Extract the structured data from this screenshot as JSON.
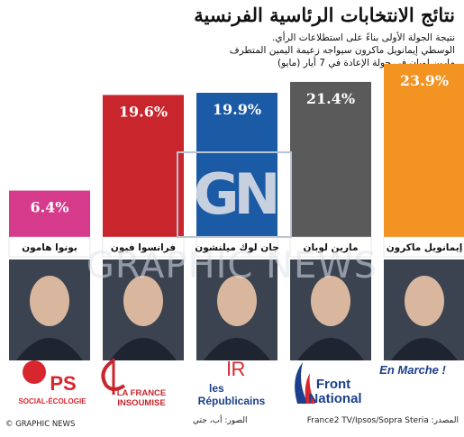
{
  "title": "نتائج الانتخابات الرئاسية الفرنسية",
  "subtitle": [
    "نتيجة الجولة الأولى بناءً على استطلاعات الرأي.",
    "الوسطي إيمانويل ماكرون سيواجه زعيمة اليمين المتطرف",
    "مارين لوبان في جولة الإعادة في 7 أيار (مايو)"
  ],
  "watermark": {
    "logo": "GN",
    "text": "GRAPHIC NEWS"
  },
  "chart_data": {
    "type": "bar",
    "categories": [
      "بونوا هامون",
      "فرانسوا فيون",
      "جان لوك ميلنشون",
      "مارين لوبان",
      "إيمانويل ماكرون"
    ],
    "values": [
      6.4,
      19.6,
      19.9,
      21.4,
      23.9
    ],
    "data_labels": [
      "6.4%",
      "19.6%",
      "19.9%",
      "21.4%",
      "23.9%"
    ],
    "colors": [
      "#d63a8a",
      "#c8252d",
      "#1b5aa5",
      "#5a5a5a",
      "#f39321"
    ],
    "label_colors": [
      "#ffffff",
      "#ffffff",
      "#ffffff",
      "#ffffff",
      "#ffffff"
    ],
    "ylim": [
      0,
      24.5
    ],
    "grid": false
  },
  "parties": [
    {
      "name": "PS",
      "sub": "SOCIAL-ÉCOLOGIE",
      "color": "#d8262f"
    },
    {
      "name": "LA FRANCE",
      "sub": "INSOUMISE",
      "color": "#c8252d"
    },
    {
      "name": "les",
      "sub": "Républicains",
      "color": "#1b3f8a"
    },
    {
      "name": "Front",
      "sub": "National",
      "color": "#1b3f8a"
    },
    {
      "name": "En Marche !",
      "sub": "",
      "color": "#1b3f8a"
    }
  ],
  "party_icons": [
    "rose-icon",
    "phi-icon",
    "lr-icon",
    "flame-icon",
    "none"
  ],
  "footer": {
    "copyright": "© GRAPHIC NEWS",
    "photos": "الصور: أب، جتي",
    "source_label": "المصدر:",
    "source": "France2 TV/Ipsos/Sopra Steria"
  }
}
